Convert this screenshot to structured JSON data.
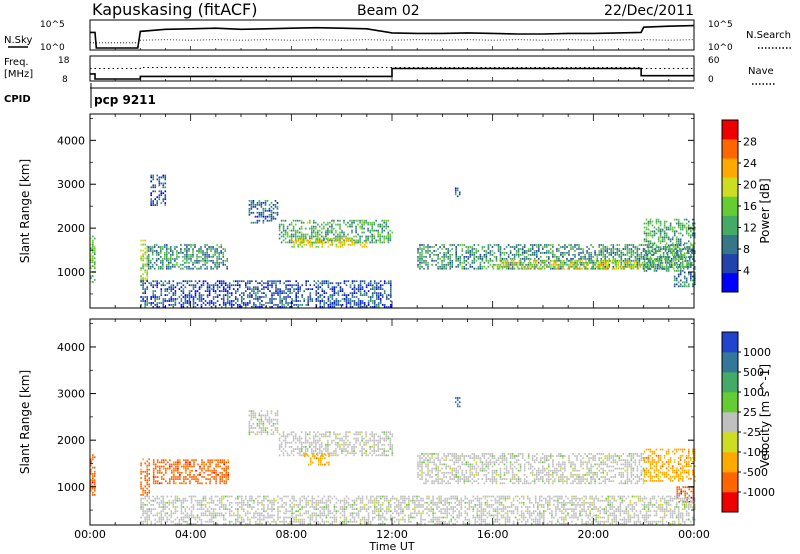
{
  "header": {
    "station": "Kapuskasing (fitACF)",
    "beam": "Beam 02",
    "date": "22/Dec/2011"
  },
  "panels": {
    "nsky_label": "N.Sky",
    "nsky_ticks": [
      "10^5",
      "10^0"
    ],
    "nsearch_label": "N.Search",
    "nsearch_ticks": [
      "10^5",
      "10^0"
    ],
    "freq_label_1": "Freq.",
    "freq_label_2": "[MHz]",
    "freq_ticks": [
      "18",
      "8"
    ],
    "nave_label": "Nave",
    "nave_ticks": [
      "60",
      "0"
    ],
    "cpid_label": "CPID",
    "cpid_value": "pcp 9211"
  },
  "colors": {
    "power_scale": [
      "#0000ff",
      "#2244aa",
      "#337788",
      "#44aa66",
      "#66cc33",
      "#ccdd22",
      "#ffaa00",
      "#ff6600",
      "#ee0000"
    ],
    "velocity_scale": [
      "#ee0000",
      "#ff6600",
      "#ffaa00",
      "#ccdd22",
      "#c0c0c0",
      "#66cc33",
      "#44aa66",
      "#337799",
      "#2244cc"
    ]
  },
  "chart_data": [
    {
      "type": "line",
      "name": "N.Sky / N.Search",
      "x_hours": [
        0.0,
        0.2,
        0.25,
        1.9,
        2.0,
        3.0,
        4.0,
        5.0,
        6.0,
        7.0,
        8.0,
        9.0,
        10.0,
        11.0,
        12.0,
        13.0,
        14.0,
        15.0,
        16.0,
        17.0,
        18.0,
        19.0,
        20.0,
        21.0,
        21.9,
        22.0,
        23.0,
        24.0
      ],
      "nsky_log": [
        3.0,
        3.0,
        0.0,
        0.0,
        3.2,
        3.6,
        3.7,
        3.8,
        3.6,
        3.7,
        3.8,
        3.9,
        3.8,
        3.7,
        2.9,
        2.8,
        2.8,
        2.9,
        2.8,
        2.7,
        2.7,
        2.8,
        2.8,
        2.9,
        3.0,
        4.0,
        4.2,
        4.3
      ],
      "nsearch_log": [
        1.0,
        1.0,
        1.0,
        1.0,
        1.5,
        1.6,
        1.5,
        1.6,
        1.5,
        1.6,
        1.5,
        1.6,
        1.5,
        1.6,
        1.5,
        1.6,
        1.5,
        1.6,
        1.5,
        1.6,
        1.5,
        1.6,
        1.5,
        1.6,
        1.5,
        1.6,
        1.5,
        1.6
      ],
      "ylim_log": [
        0,
        5
      ]
    },
    {
      "type": "line",
      "name": "Freq / Nave",
      "freq_steps": [
        [
          0.0,
          10.4
        ],
        [
          0.2,
          8.0
        ],
        [
          2.0,
          9.2
        ],
        [
          12.0,
          13.0
        ],
        [
          21.9,
          9.6
        ],
        [
          24.0,
          9.6
        ]
      ],
      "freq_ylim": [
        8,
        18
      ],
      "nave_steps": [
        [
          0.0,
          30
        ],
        [
          2.0,
          33
        ],
        [
          12.0,
          33
        ],
        [
          21.9,
          30
        ],
        [
          24.0,
          30
        ]
      ],
      "nave_ylim": [
        0,
        60
      ]
    },
    {
      "type": "heatmap",
      "name": "Power",
      "x_range_hours": [
        0,
        24
      ],
      "xlabel": "Time UT",
      "x_ticks": [
        "00:00",
        "04:00",
        "08:00",
        "12:00",
        "16:00",
        "20:00",
        "00:00"
      ],
      "ylabel": "Slant Range [km]",
      "ylim": [
        180,
        4600
      ],
      "y_ticks": [
        1000,
        2000,
        3000,
        4000
      ],
      "colorbar_label": "Power [dB]",
      "colorbar_ticks": [
        4,
        8,
        12,
        16,
        20,
        24,
        28
      ],
      "colorbar_range": [
        0,
        30
      ],
      "echo_regions": [
        {
          "t0": 0.0,
          "t1": 0.2,
          "r0": 750,
          "r1": 1800,
          "p": 14
        },
        {
          "t0": 2.0,
          "t1": 2.3,
          "r0": 700,
          "r1": 1700,
          "p": 16
        },
        {
          "t0": 2.3,
          "t1": 5.5,
          "r0": 1050,
          "r1": 1600,
          "p": 10
        },
        {
          "t0": 2.4,
          "t1": 3.0,
          "r0": 2500,
          "r1": 3200,
          "p": 6
        },
        {
          "t0": 6.3,
          "t1": 7.5,
          "r0": 2100,
          "r1": 2600,
          "p": 8
        },
        {
          "t0": 7.5,
          "t1": 12.0,
          "r0": 1650,
          "r1": 2150,
          "p": 12
        },
        {
          "t0": 8.0,
          "t1": 11.0,
          "r0": 1550,
          "r1": 1750,
          "p": 18
        },
        {
          "t0": 14.5,
          "t1": 14.7,
          "r0": 2700,
          "r1": 2900,
          "p": 8
        },
        {
          "t0": 13.0,
          "t1": 24.0,
          "r0": 1050,
          "r1": 1600,
          "p": 10
        },
        {
          "t0": 16.0,
          "t1": 22.0,
          "r0": 1050,
          "r1": 1250,
          "p": 18
        },
        {
          "t0": 22.0,
          "t1": 24.0,
          "r0": 1000,
          "r1": 2200,
          "p": 12
        },
        {
          "t0": 23.2,
          "t1": 24.0,
          "r0": 650,
          "r1": 1000,
          "p": 8
        },
        {
          "t0": 2.0,
          "t1": 12.0,
          "r0": 180,
          "r1": 800,
          "p": 6
        }
      ]
    },
    {
      "type": "heatmap",
      "name": "Velocity",
      "x_range_hours": [
        0,
        24
      ],
      "xlabel": "Time UT",
      "x_ticks": [
        "00:00",
        "04:00",
        "08:00",
        "12:00",
        "16:00",
        "20:00",
        "00:00"
      ],
      "ylabel": "Slant Range [km]",
      "ylim": [
        180,
        4600
      ],
      "y_ticks": [
        1000,
        2000,
        3000,
        4000
      ],
      "colorbar_label": "Velocity [m s^-1]",
      "colorbar_ticks": [
        "1000",
        "500",
        "100",
        "25",
        "-25",
        "-100",
        "-500",
        "-1000"
      ],
      "echo_regions": [
        {
          "t0": 0.0,
          "t1": 0.2,
          "r0": 800,
          "r1": 1700,
          "v": "-500"
        },
        {
          "t0": 2.0,
          "t1": 2.4,
          "r0": 800,
          "r1": 1600,
          "v": "-500"
        },
        {
          "t0": 2.5,
          "t1": 5.5,
          "r0": 1050,
          "r1": 1550,
          "v": "-500"
        },
        {
          "t0": 6.3,
          "t1": 7.5,
          "r0": 2100,
          "r1": 2600,
          "v": "0"
        },
        {
          "t0": 7.5,
          "t1": 12.0,
          "r0": 1650,
          "r1": 2150,
          "v": "0"
        },
        {
          "t0": 8.5,
          "t1": 9.5,
          "r0": 1450,
          "r1": 1700,
          "v": "-100"
        },
        {
          "t0": 14.5,
          "t1": 14.7,
          "r0": 2700,
          "r1": 2900,
          "v": "500"
        },
        {
          "t0": 13.0,
          "t1": 22.0,
          "r0": 1050,
          "r1": 1700,
          "v": "0"
        },
        {
          "t0": 22.0,
          "t1": 24.0,
          "r0": 1100,
          "r1": 1800,
          "v": "-100"
        },
        {
          "t0": 23.3,
          "t1": 24.0,
          "r0": 650,
          "r1": 1000,
          "v": "-500"
        },
        {
          "t0": 2.0,
          "t1": 24.0,
          "r0": 180,
          "r1": 800,
          "v": "0"
        }
      ]
    }
  ]
}
